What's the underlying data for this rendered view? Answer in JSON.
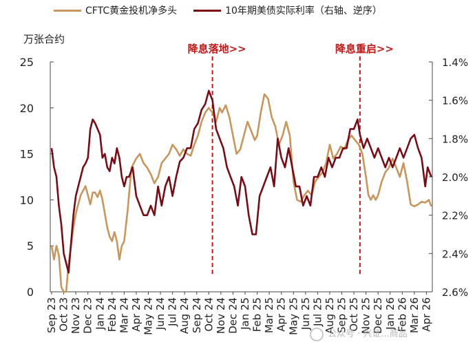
{
  "chart_data": {
    "type": "line",
    "title": "",
    "y_left_label": "万张合约",
    "y_left_range": [
      0,
      25
    ],
    "y_left_ticks": [
      "0",
      "5",
      "10",
      "15",
      "20",
      "25"
    ],
    "y_right_range": [
      1.4,
      2.6
    ],
    "y_right_inverted": true,
    "y_right_ticks": [
      "1.4%",
      "1.6%",
      "1.8%",
      "2.0%",
      "2.2%",
      "2.4%",
      "2.6%"
    ],
    "x_ticks": [
      "Sep 23",
      "Oct 23",
      "Nov 23",
      "Dec 23",
      "Jan 24",
      "Feb 24",
      "Mar 24",
      "Apr 24",
      "May 24",
      "Jun 24",
      "Jul 24",
      "Aug 24",
      "Sep 24",
      "Oct 24",
      "Nov 24",
      "Dec 24",
      "Jan 25",
      "Feb 25",
      "Mar 25",
      "Apr 25",
      "May 25",
      "Jun 25",
      "Jul 25",
      "Aug 25",
      "Sep 25",
      "Oct 25",
      "Nov 25",
      "Dec 25",
      "Jan 26",
      "Feb 26",
      "Mar 26",
      "Apr 26"
    ],
    "annotations": [
      {
        "label": "降息落地>>",
        "x_month_index": 13.3
      },
      {
        "label": "降息重启>>",
        "x_month_index": 25.5
      }
    ],
    "series": [
      {
        "name": "CFTC黄金投机净多头",
        "axis": "left",
        "color": "#c8965a",
        "points": [
          [
            0,
            5
          ],
          [
            0.2,
            3.5
          ],
          [
            0.4,
            5
          ],
          [
            0.6,
            4
          ],
          [
            0.8,
            0.5
          ],
          [
            1.0,
            -0.5
          ],
          [
            1.2,
            -1
          ],
          [
            1.4,
            3
          ],
          [
            1.6,
            5
          ],
          [
            1.8,
            7
          ],
          [
            2.0,
            8.5
          ],
          [
            2.2,
            9.5
          ],
          [
            2.4,
            10.5
          ],
          [
            2.6,
            11
          ],
          [
            2.8,
            11.5
          ],
          [
            3.0,
            10.5
          ],
          [
            3.2,
            9.5
          ],
          [
            3.4,
            10.8
          ],
          [
            3.6,
            10.8
          ],
          [
            3.8,
            10.3
          ],
          [
            4.0,
            11
          ],
          [
            4.2,
            10
          ],
          [
            4.4,
            8.5
          ],
          [
            4.6,
            7
          ],
          [
            4.8,
            6
          ],
          [
            5.0,
            5.5
          ],
          [
            5.2,
            6.5
          ],
          [
            5.4,
            5.5
          ],
          [
            5.6,
            3.5
          ],
          [
            5.8,
            5
          ],
          [
            6.0,
            5.5
          ],
          [
            6.3,
            9
          ],
          [
            6.6,
            13.5
          ],
          [
            7.0,
            14.5
          ],
          [
            7.3,
            15
          ],
          [
            7.6,
            14
          ],
          [
            7.9,
            13.5
          ],
          [
            8.2,
            12.8
          ],
          [
            8.5,
            11.8
          ],
          [
            8.8,
            12.5
          ],
          [
            9.1,
            14
          ],
          [
            9.4,
            14.5
          ],
          [
            9.7,
            15
          ],
          [
            10.0,
            16
          ],
          [
            10.3,
            15.5
          ],
          [
            10.6,
            14.8
          ],
          [
            10.9,
            15.5
          ],
          [
            11.2,
            15
          ],
          [
            11.5,
            14.8
          ],
          [
            11.8,
            16
          ],
          [
            12.1,
            17
          ],
          [
            12.4,
            18.5
          ],
          [
            12.7,
            19.5
          ],
          [
            13.0,
            20
          ],
          [
            13.3,
            19.5
          ],
          [
            13.6,
            18.5
          ],
          [
            13.9,
            20
          ],
          [
            14.1,
            19.5
          ],
          [
            14.4,
            20.3
          ],
          [
            14.7,
            19
          ],
          [
            15.0,
            17
          ],
          [
            15.3,
            15
          ],
          [
            15.6,
            15.5
          ],
          [
            15.9,
            17
          ],
          [
            16.2,
            18.5
          ],
          [
            16.5,
            17.5
          ],
          [
            16.8,
            16.5
          ],
          [
            17.0,
            17
          ],
          [
            17.3,
            19.5
          ],
          [
            17.6,
            21.5
          ],
          [
            17.9,
            21
          ],
          [
            18.2,
            19
          ],
          [
            18.5,
            18
          ],
          [
            18.8,
            16
          ],
          [
            19.1,
            17
          ],
          [
            19.4,
            18.5
          ],
          [
            19.7,
            17
          ],
          [
            20.0,
            12
          ],
          [
            20.3,
            10
          ],
          [
            20.6,
            9.8
          ],
          [
            20.9,
            10.5
          ],
          [
            21.2,
            11
          ],
          [
            21.5,
            10.5
          ],
          [
            21.8,
            12
          ],
          [
            22.1,
            12.5
          ],
          [
            22.4,
            13
          ],
          [
            22.7,
            14
          ],
          [
            23.0,
            16
          ],
          [
            23.3,
            14.5
          ],
          [
            23.6,
            15
          ],
          [
            23.9,
            15.8
          ],
          [
            24.2,
            15.5
          ],
          [
            24.5,
            16.5
          ],
          [
            24.8,
            17
          ],
          [
            25.1,
            16.5
          ],
          [
            25.4,
            16
          ],
          [
            25.7,
            15
          ],
          [
            26.0,
            12.5
          ],
          [
            26.2,
            10.5
          ],
          [
            26.4,
            10
          ],
          [
            26.6,
            10.5
          ],
          [
            26.8,
            10
          ],
          [
            27.0,
            10.5
          ],
          [
            27.3,
            12
          ],
          [
            27.6,
            13
          ],
          [
            27.9,
            13.5
          ],
          [
            28.2,
            14.5
          ],
          [
            28.5,
            13.5
          ],
          [
            28.8,
            12.5
          ],
          [
            29.1,
            14
          ],
          [
            29.4,
            12
          ],
          [
            29.7,
            9.5
          ],
          [
            30.0,
            9.3
          ],
          [
            30.3,
            9.5
          ],
          [
            30.6,
            9.8
          ],
          [
            30.9,
            9.7
          ],
          [
            31.2,
            10
          ],
          [
            31.4,
            9.3
          ]
        ]
      },
      {
        "name": "10年期美债实际利率（右轴、逆序）",
        "axis": "right",
        "color": "#7a0a14",
        "points": [
          [
            0,
            1.85
          ],
          [
            0.2,
            1.95
          ],
          [
            0.4,
            2.0
          ],
          [
            0.6,
            2.15
          ],
          [
            0.8,
            2.25
          ],
          [
            1.0,
            2.4
          ],
          [
            1.2,
            2.45
          ],
          [
            1.4,
            2.5
          ],
          [
            1.6,
            2.35
          ],
          [
            1.8,
            2.2
          ],
          [
            2.0,
            2.1
          ],
          [
            2.2,
            2.05
          ],
          [
            2.4,
            2.0
          ],
          [
            2.6,
            1.95
          ],
          [
            2.8,
            1.93
          ],
          [
            3.0,
            1.9
          ],
          [
            3.2,
            1.75
          ],
          [
            3.4,
            1.7
          ],
          [
            3.6,
            1.72
          ],
          [
            3.8,
            1.75
          ],
          [
            4.0,
            1.78
          ],
          [
            4.2,
            1.9
          ],
          [
            4.4,
            1.88
          ],
          [
            4.6,
            1.95
          ],
          [
            4.8,
            1.97
          ],
          [
            5.0,
            1.9
          ],
          [
            5.2,
            1.93
          ],
          [
            5.4,
            1.85
          ],
          [
            5.6,
            1.9
          ],
          [
            5.8,
            2.0
          ],
          [
            6.0,
            2.05
          ],
          [
            6.2,
            2.0
          ],
          [
            6.4,
            2.0
          ],
          [
            6.7,
            1.95
          ],
          [
            7.0,
            2.1
          ],
          [
            7.3,
            2.15
          ],
          [
            7.6,
            2.2
          ],
          [
            7.9,
            2.2
          ],
          [
            8.2,
            2.15
          ],
          [
            8.5,
            2.2
          ],
          [
            8.8,
            2.05
          ],
          [
            9.1,
            2.15
          ],
          [
            9.4,
            2.05
          ],
          [
            9.7,
            2.0
          ],
          [
            10.0,
            2.1
          ],
          [
            10.3,
            2.0
          ],
          [
            10.6,
            1.92
          ],
          [
            10.9,
            1.9
          ],
          [
            11.2,
            1.85
          ],
          [
            11.5,
            1.85
          ],
          [
            11.8,
            1.75
          ],
          [
            12.1,
            1.72
          ],
          [
            12.4,
            1.65
          ],
          [
            12.7,
            1.62
          ],
          [
            13.0,
            1.55
          ],
          [
            13.3,
            1.6
          ],
          [
            13.6,
            1.75
          ],
          [
            13.9,
            1.8
          ],
          [
            14.2,
            1.85
          ],
          [
            14.5,
            1.95
          ],
          [
            14.8,
            2.0
          ],
          [
            15.1,
            2.05
          ],
          [
            15.4,
            2.15
          ],
          [
            15.7,
            2.0
          ],
          [
            16.0,
            2.05
          ],
          [
            16.3,
            2.2
          ],
          [
            16.6,
            2.3
          ],
          [
            16.9,
            2.3
          ],
          [
            17.2,
            2.1
          ],
          [
            17.5,
            2.05
          ],
          [
            17.8,
            2.0
          ],
          [
            18.1,
            1.95
          ],
          [
            18.4,
            2.05
          ],
          [
            18.7,
            1.8
          ],
          [
            19.0,
            1.9
          ],
          [
            19.3,
            1.95
          ],
          [
            19.6,
            1.85
          ],
          [
            19.9,
            1.95
          ],
          [
            20.2,
            2.05
          ],
          [
            20.5,
            2.05
          ],
          [
            20.8,
            2.15
          ],
          [
            21.1,
            2.1
          ],
          [
            21.4,
            2.15
          ],
          [
            21.7,
            2.0
          ],
          [
            22.0,
            2.0
          ],
          [
            22.3,
            1.95
          ],
          [
            22.6,
            2.0
          ],
          [
            22.9,
            1.9
          ],
          [
            23.2,
            1.95
          ],
          [
            23.5,
            1.9
          ],
          [
            23.8,
            1.9
          ],
          [
            24.1,
            1.85
          ],
          [
            24.4,
            1.85
          ],
          [
            24.7,
            1.75
          ],
          [
            25.0,
            1.75
          ],
          [
            25.3,
            1.7
          ],
          [
            25.5,
            1.78
          ],
          [
            25.8,
            1.85
          ],
          [
            26.1,
            1.8
          ],
          [
            26.4,
            1.85
          ],
          [
            26.7,
            1.9
          ],
          [
            27.0,
            1.85
          ],
          [
            27.3,
            1.9
          ],
          [
            27.6,
            1.95
          ],
          [
            27.9,
            1.9
          ],
          [
            28.2,
            1.95
          ],
          [
            28.5,
            1.9
          ],
          [
            28.8,
            1.85
          ],
          [
            29.1,
            1.9
          ],
          [
            29.4,
            1.85
          ],
          [
            29.7,
            1.8
          ],
          [
            30.0,
            1.78
          ],
          [
            30.3,
            1.85
          ],
          [
            30.6,
            1.9
          ],
          [
            30.9,
            2.05
          ],
          [
            31.1,
            1.95
          ],
          [
            31.4,
            2.0
          ]
        ]
      }
    ]
  },
  "legend": {
    "item1": "CFTC黄金投机净多头",
    "item2": "10年期美债实际利率（右轴、逆序）"
  },
  "y_unit_label": "万张合约",
  "watermark": "公众号 · 兴证...商品"
}
